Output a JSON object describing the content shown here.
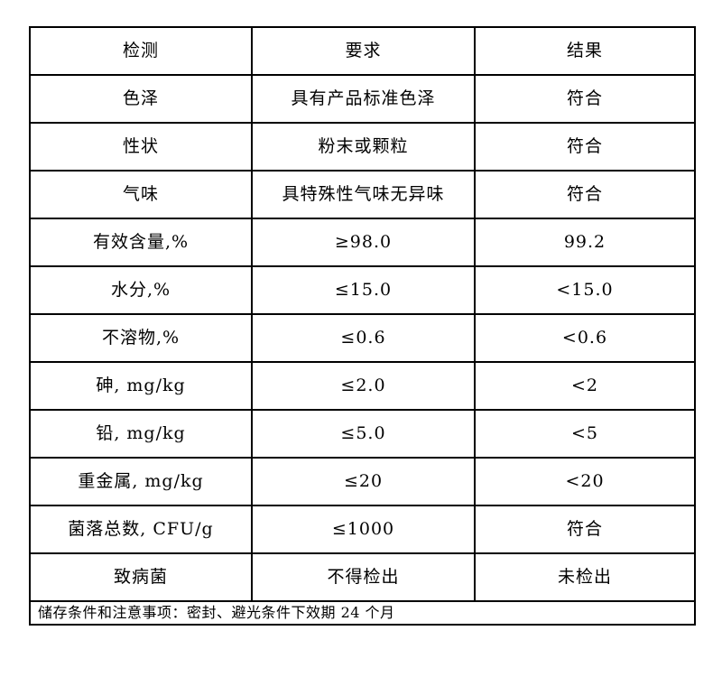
{
  "table": {
    "headers": [
      "检测",
      "要求",
      "结果"
    ],
    "rows": [
      {
        "item": "色泽",
        "requirement": "具有产品标准色泽",
        "result": "符合"
      },
      {
        "item": "性状",
        "requirement": "粉末或颗粒",
        "result": "符合"
      },
      {
        "item": "气味",
        "requirement": "具特殊性气味无异味",
        "result": "符合"
      },
      {
        "item": "有效含量,%",
        "requirement": "≥98.0",
        "result": "99.2"
      },
      {
        "item": "水分,%",
        "requirement": "≤15.0",
        "result": "<15.0"
      },
      {
        "item": "不溶物,%",
        "requirement": "≤0.6",
        "result": "<0.6"
      },
      {
        "item": "砷, mg/kg",
        "requirement": "≤2.0",
        "result": "<2"
      },
      {
        "item": "铅, mg/kg",
        "requirement": "≤5.0",
        "result": "<5"
      },
      {
        "item": "重金属, mg/kg",
        "requirement": "≤20",
        "result": "<20"
      },
      {
        "item": "菌落总数, CFU/g",
        "requirement": "≤1000",
        "result": "符合"
      },
      {
        "item": "致病菌",
        "requirement": "不得检出",
        "result": "未检出"
      }
    ],
    "footer": "储存条件和注意事项：密封、避光条件下效期 24 个月"
  },
  "colors": {
    "border": "#000000",
    "text": "#000000",
    "background": "#ffffff"
  }
}
